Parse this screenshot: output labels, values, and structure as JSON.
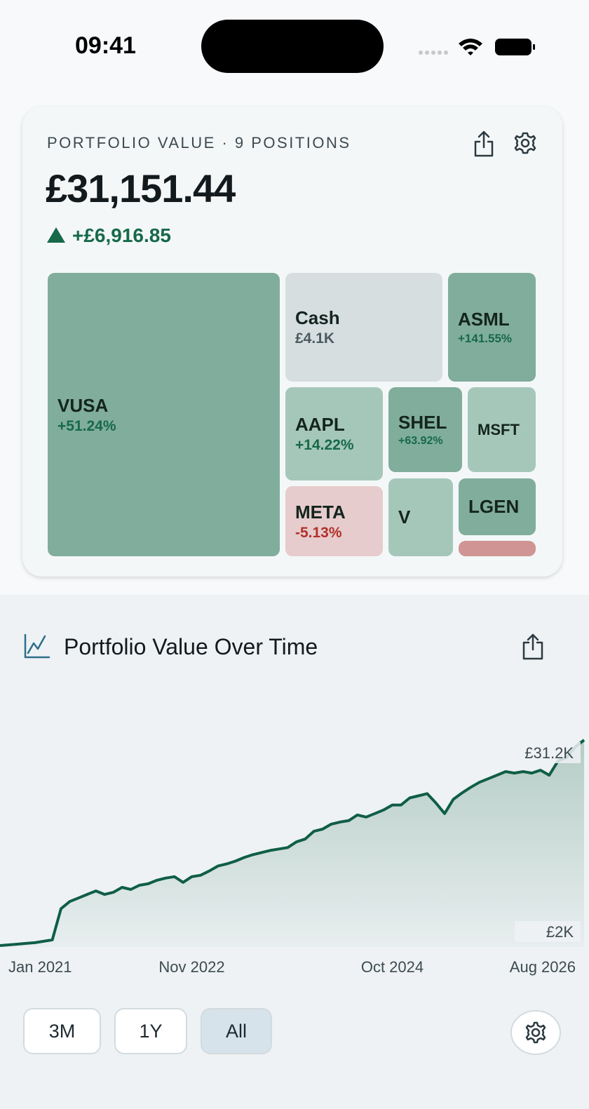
{
  "status_bar": {
    "time": "09:41"
  },
  "portfolio": {
    "heading": "PORTFOLIO VALUE · 9 POSITIONS",
    "total": "£31,151.44",
    "change": "+£6,916.85",
    "tiles": [
      {
        "name": "VUSA",
        "change": "+51.24%"
      },
      {
        "name": "Cash",
        "value": "£4.1K"
      },
      {
        "name": "ASML",
        "change": "+141.55%"
      },
      {
        "name": "AAPL",
        "change": "+14.22%"
      },
      {
        "name": "SHEL",
        "change": "+63.92%"
      },
      {
        "name": "MSFT"
      },
      {
        "name": "META",
        "change": "-5.13%"
      },
      {
        "name": "V"
      },
      {
        "name": "LGEN"
      }
    ]
  },
  "chart_data": {
    "type": "line",
    "title": "Portfolio Value Over Time",
    "color": "#0f5e45",
    "x": [
      "2021-01",
      "2021-02",
      "2021-03",
      "2021-04",
      "2021-05",
      "2021-06",
      "2021-07",
      "2021-08",
      "2021-09",
      "2021-10",
      "2021-11",
      "2021-12",
      "2022-01",
      "2022-02",
      "2022-03",
      "2022-04",
      "2022-05",
      "2022-06",
      "2022-07",
      "2022-08",
      "2022-09",
      "2022-10",
      "2022-11",
      "2022-12",
      "2023-01",
      "2023-02",
      "2023-03",
      "2023-04",
      "2023-05",
      "2023-06",
      "2023-07",
      "2023-08",
      "2023-09",
      "2023-10",
      "2023-11",
      "2023-12",
      "2024-01",
      "2024-02",
      "2024-03",
      "2024-04",
      "2024-05",
      "2024-06",
      "2024-07",
      "2024-08",
      "2024-09",
      "2024-10",
      "2024-11",
      "2024-12",
      "2025-01",
      "2025-02",
      "2025-03",
      "2025-04",
      "2025-05",
      "2025-06",
      "2025-07",
      "2025-08",
      "2025-09",
      "2025-10",
      "2025-11",
      "2025-12",
      "2026-01",
      "2026-02",
      "2026-03",
      "2026-04",
      "2026-05",
      "2026-06",
      "2026-07",
      "2026-08"
    ],
    "values": [
      2200,
      2300,
      2400,
      2500,
      2600,
      2800,
      3000,
      7400,
      8400,
      8900,
      9400,
      9900,
      9400,
      9700,
      10400,
      10100,
      10700,
      10900,
      11400,
      11700,
      11900,
      11100,
      11900,
      12100,
      12700,
      13400,
      13700,
      14100,
      14600,
      15000,
      15300,
      15600,
      15800,
      16000,
      16800,
      17200,
      18300,
      18600,
      19300,
      19600,
      19800,
      20600,
      20300,
      20800,
      21300,
      22000,
      22000,
      23000,
      23300,
      23600,
      22300,
      20800,
      22800,
      23700,
      24500,
      25200,
      25700,
      26200,
      26700,
      26500,
      26700,
      26500,
      26900,
      26200,
      28200,
      28700,
      30200,
      31151.44
    ],
    "xlim": [
      "2021-01",
      "2026-08"
    ],
    "xticks": [
      {
        "value": "2021-01",
        "label": "Jan 2021"
      },
      {
        "value": "2022-11",
        "label": "Nov 2022"
      },
      {
        "value": "2024-10",
        "label": "Oct 2024"
      },
      {
        "value": "2026-08",
        "label": "Aug 2026"
      }
    ],
    "ylim": [
      2000,
      31151.44
    ],
    "yticks": [
      {
        "value": 2000,
        "label": "£2K"
      },
      {
        "value": 31151.44,
        "label": "£31.2K"
      }
    ]
  },
  "range_buttons": [
    "3M",
    "1Y",
    "All"
  ]
}
